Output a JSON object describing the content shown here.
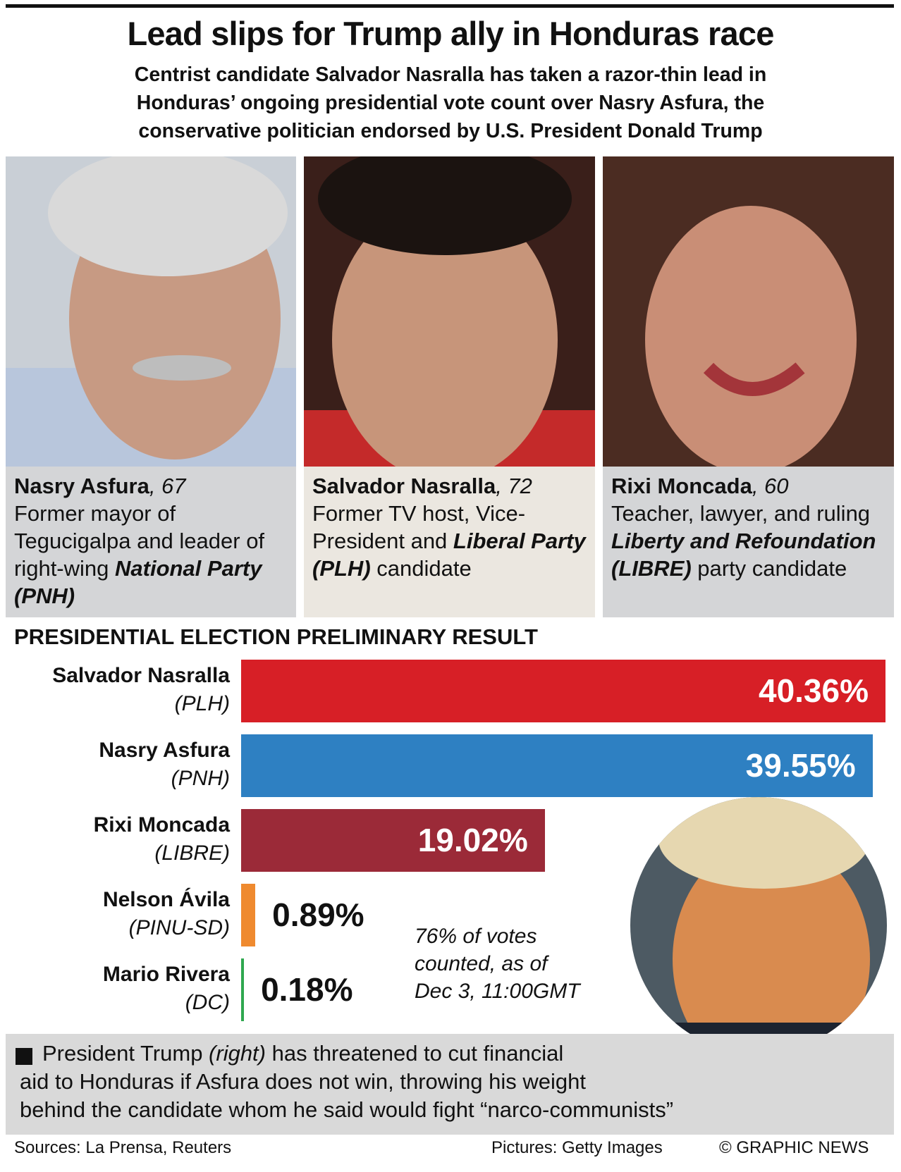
{
  "header": {
    "title": "Lead slips for Trump ally in Honduras race",
    "subtitle_lines": [
      "Centrist candidate Salvador Nasralla has taken a razor-thin lead in",
      "Honduras’ ongoing presidential vote count over Nasry Asfura, the",
      "conservative politician endorsed by U.S. President Donald Trump"
    ]
  },
  "candidates": [
    {
      "heading": [
        {
          "text": "Nasry Asfura",
          "style": "bold"
        },
        {
          "text": ", 67",
          "style": "italic"
        }
      ],
      "body": [
        {
          "text": "Former mayor of Tegucigalpa and leader of right-wing ",
          "style": "regular"
        },
        {
          "text": "National Party (PNH)",
          "style": "bold-italic"
        }
      ]
    },
    {
      "heading": [
        {
          "text": "Salvador Nasralla",
          "style": "bold"
        },
        {
          "text": ", 72",
          "style": "italic"
        }
      ],
      "body": [
        {
          "text": "Former TV host, Vice-President and ",
          "style": "regular"
        },
        {
          "text": "Liberal Party (PLH)",
          "style": "bold-italic"
        },
        {
          "text": " candidate",
          "style": "regular"
        }
      ]
    },
    {
      "heading": [
        {
          "text": "Rixi Moncada",
          "style": "bold"
        },
        {
          "text": ", 60",
          "style": "italic"
        }
      ],
      "body": [
        {
          "text": "Teacher, lawyer, and ruling ",
          "style": "regular"
        },
        {
          "text": "Liberty and Refoundation (LIBRE)",
          "style": "bold-italic"
        },
        {
          "text": " party candidate",
          "style": "regular"
        }
      ]
    }
  ],
  "chart_data": {
    "type": "bar",
    "orientation": "horizontal",
    "title": "PRESIDENTIAL ELECTION PRELIMINARY RESULT",
    "categories": [
      "Salvador Nasralla",
      "Nasry Asfura",
      "Rixi Moncada",
      "Nelson Ávila",
      "Mario Rivera"
    ],
    "parties": [
      "(PLH)",
      "(PNH)",
      "(LIBRE)",
      "(PINU-SD)",
      "(DC)"
    ],
    "values": [
      40.36,
      39.55,
      19.02,
      0.89,
      0.18
    ],
    "value_labels": [
      "40.36%",
      "39.55%",
      "19.02%",
      "0.89%",
      "0.18%"
    ],
    "colors": [
      "#d71f26",
      "#2e80c2",
      "#9b2a38",
      "#ef8a2f",
      "#2fa84f"
    ],
    "annotation_lines": [
      "76% of votes",
      "counted, as of",
      "Dec 3, 11:00GMT"
    ]
  },
  "note": {
    "lines": [
      [
        {
          "text": "President Trump ",
          "style": "regular"
        },
        {
          "text": "(right)",
          "style": "italic"
        },
        {
          "text": " has threatened to cut financial",
          "style": "regular"
        }
      ],
      [
        {
          "text": "aid to Honduras if Asfura does not win, throwing his weight",
          "style": "regular"
        }
      ],
      [
        {
          "text": "behind the candidate whom he said would fight “narco-communists”",
          "style": "regular"
        }
      ]
    ]
  },
  "footer": {
    "sources": "Sources: La Prensa, Reuters",
    "pictures": "Pictures: Getty Images",
    "credit": "© GRAPHIC NEWS"
  }
}
